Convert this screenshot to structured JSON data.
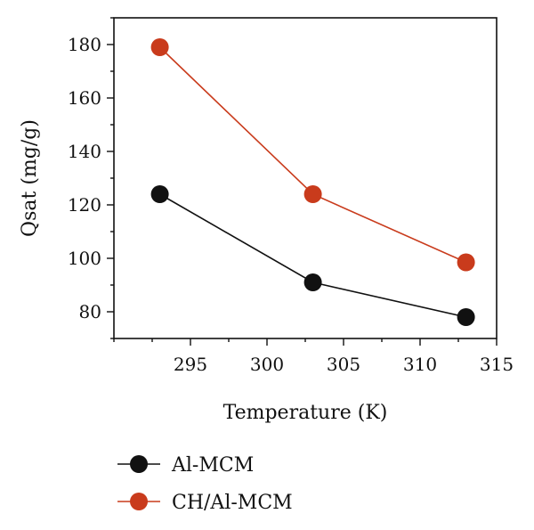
{
  "chart_data": {
    "type": "line",
    "title": "",
    "xlabel": "Temperature (K)",
    "ylabel": "Qsat (mg/g)",
    "xlim": [
      290,
      315
    ],
    "ylim": [
      70,
      190
    ],
    "xticks": [
      295,
      300,
      305,
      310,
      315
    ],
    "yticks": [
      80,
      100,
      120,
      140,
      160,
      180
    ],
    "grid": false,
    "legend_position": "bottom-left",
    "series": [
      {
        "name": "Al-MCM",
        "color": "#111111",
        "x": [
          293,
          303,
          313
        ],
        "y": [
          124,
          91,
          78
        ]
      },
      {
        "name": "CH/Al-MCM",
        "color": "#c93b1c",
        "x": [
          293,
          303,
          313
        ],
        "y": [
          179,
          124,
          98.5
        ]
      }
    ]
  }
}
